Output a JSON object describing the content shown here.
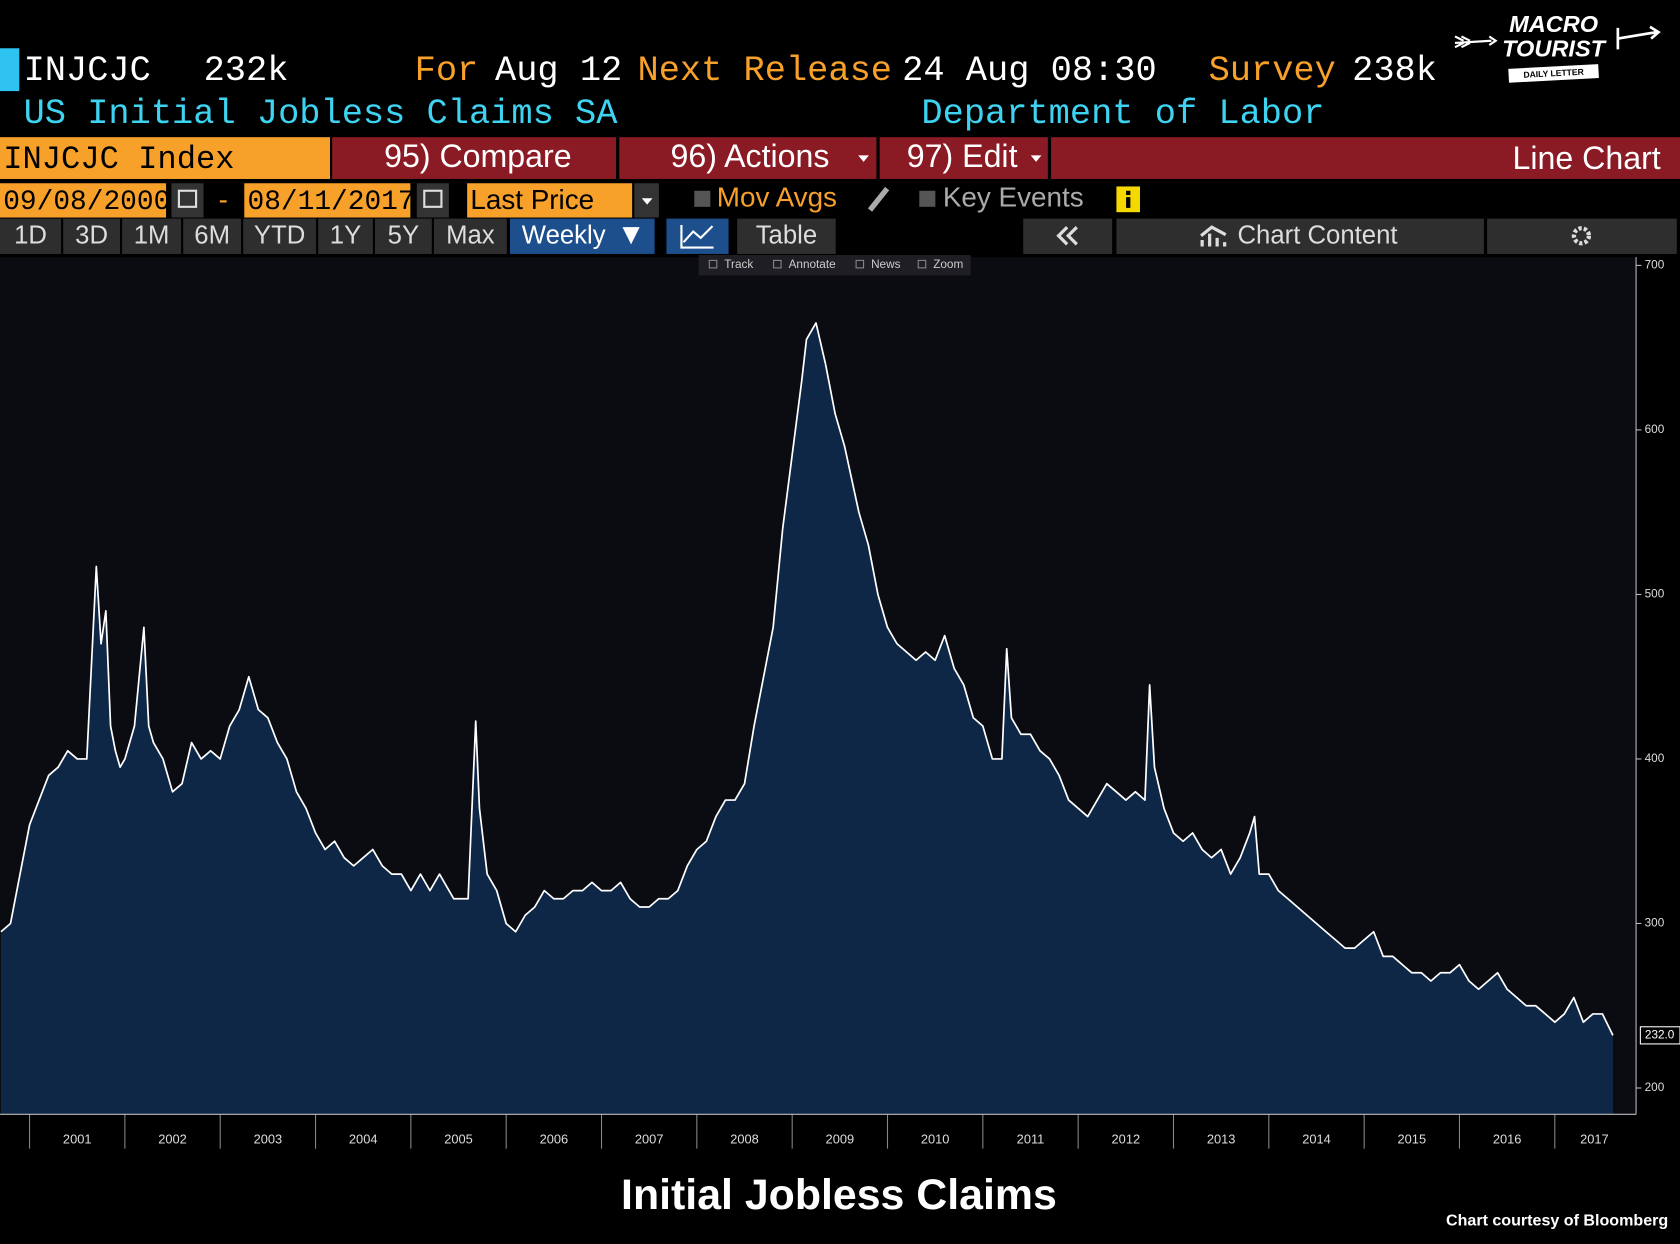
{
  "header": {
    "ticker": "INJCJC",
    "last": "232k",
    "for_label": "For",
    "for_date": "Aug 12",
    "next_label": "Next Release",
    "next_date": "24 Aug 08:30",
    "survey_label": "Survey",
    "survey_value": "238k",
    "name": "US Initial Jobless Claims SA",
    "source": "Department of Labor"
  },
  "logo": {
    "line1": "MACRO",
    "line2": "TOURIST",
    "tagline": "DAILY LETTER"
  },
  "menu": {
    "security": "INJCJC Index",
    "compare": "95) Compare",
    "actions": "96) Actions",
    "edit": "97) Edit",
    "chart_type": "Line Chart"
  },
  "controls": {
    "start": "09/08/2000",
    "dash": "-",
    "end": "08/11/2017",
    "field": "Last Price",
    "mov_avgs": "Mov Avgs",
    "key_events": "Key Events"
  },
  "tabs": {
    "ranges": [
      "1D",
      "3D",
      "1M",
      "6M",
      "YTD",
      "1Y",
      "5Y",
      "Max"
    ],
    "frequency": "Weekly",
    "table": "Table",
    "chart_content": "Chart Content"
  },
  "tools": [
    "Track",
    "Annotate",
    "News",
    "Zoom"
  ],
  "chart_data": {
    "type": "area",
    "title": "Initial Jobless Claims",
    "credit": "Chart courtesy of Bloomberg",
    "color": "#ffffff",
    "fill": "#0e2746",
    "x": [
      2000.7,
      2000.8,
      2000.9,
      2001.0,
      2001.1,
      2001.2,
      2001.3,
      2001.4,
      2001.5,
      2001.6,
      2001.7,
      2001.75,
      2001.8,
      2001.85,
      2001.9,
      2001.95,
      2002.0,
      2002.1,
      2002.2,
      2002.25,
      2002.3,
      2002.4,
      2002.5,
      2002.6,
      2002.7,
      2002.8,
      2002.9,
      2003.0,
      2003.1,
      2003.2,
      2003.3,
      2003.4,
      2003.5,
      2003.6,
      2003.7,
      2003.8,
      2003.9,
      2004.0,
      2004.1,
      2004.2,
      2004.3,
      2004.4,
      2004.5,
      2004.6,
      2004.7,
      2004.8,
      2004.9,
      2005.0,
      2005.1,
      2005.2,
      2005.3,
      2005.45,
      2005.6,
      2005.68,
      2005.72,
      2005.8,
      2005.9,
      2006.0,
      2006.1,
      2006.2,
      2006.3,
      2006.4,
      2006.5,
      2006.6,
      2006.7,
      2006.8,
      2006.9,
      2007.0,
      2007.1,
      2007.2,
      2007.3,
      2007.4,
      2007.5,
      2007.6,
      2007.7,
      2007.8,
      2007.9,
      2008.0,
      2008.1,
      2008.2,
      2008.3,
      2008.4,
      2008.5,
      2008.6,
      2008.7,
      2008.8,
      2008.9,
      2009.0,
      2009.1,
      2009.15,
      2009.25,
      2009.35,
      2009.45,
      2009.55,
      2009.7,
      2009.8,
      2009.9,
      2010.0,
      2010.1,
      2010.2,
      2010.3,
      2010.4,
      2010.5,
      2010.6,
      2010.7,
      2010.8,
      2010.9,
      2011.0,
      2011.1,
      2011.2,
      2011.25,
      2011.3,
      2011.4,
      2011.5,
      2011.6,
      2011.7,
      2011.8,
      2011.9,
      2012.0,
      2012.1,
      2012.2,
      2012.3,
      2012.4,
      2012.5,
      2012.6,
      2012.7,
      2012.75,
      2012.8,
      2012.9,
      2013.0,
      2013.1,
      2013.2,
      2013.3,
      2013.4,
      2013.5,
      2013.6,
      2013.7,
      2013.8,
      2013.85,
      2013.9,
      2014.0,
      2014.1,
      2014.2,
      2014.3,
      2014.4,
      2014.5,
      2014.6,
      2014.7,
      2014.8,
      2014.9,
      2015.0,
      2015.1,
      2015.2,
      2015.3,
      2015.4,
      2015.5,
      2015.6,
      2015.7,
      2015.8,
      2015.9,
      2016.0,
      2016.1,
      2016.2,
      2016.3,
      2016.4,
      2016.5,
      2016.6,
      2016.7,
      2016.8,
      2016.9,
      2017.0,
      2017.1,
      2017.2,
      2017.3,
      2017.4,
      2017.5,
      2017.61
    ],
    "values": [
      295,
      300,
      330,
      360,
      375,
      390,
      395,
      405,
      400,
      400,
      517,
      470,
      490,
      420,
      405,
      395,
      400,
      420,
      480,
      420,
      410,
      400,
      380,
      385,
      410,
      400,
      405,
      400,
      420,
      430,
      450,
      430,
      425,
      410,
      400,
      380,
      370,
      355,
      345,
      350,
      340,
      335,
      340,
      345,
      335,
      330,
      330,
      320,
      330,
      320,
      330,
      315,
      315,
      423,
      370,
      330,
      320,
      300,
      295,
      305,
      310,
      320,
      315,
      315,
      320,
      320,
      325,
      320,
      320,
      325,
      315,
      310,
      310,
      315,
      315,
      320,
      335,
      345,
      350,
      365,
      375,
      375,
      385,
      420,
      450,
      480,
      540,
      585,
      630,
      655,
      665,
      640,
      610,
      590,
      550,
      530,
      500,
      480,
      470,
      465,
      460,
      465,
      460,
      475,
      455,
      445,
      425,
      420,
      400,
      400,
      467,
      425,
      415,
      415,
      405,
      400,
      390,
      375,
      370,
      365,
      375,
      385,
      380,
      375,
      380,
      375,
      445,
      395,
      370,
      355,
      350,
      355,
      345,
      340,
      345,
      330,
      340,
      355,
      365,
      330,
      330,
      320,
      315,
      310,
      305,
      300,
      295,
      290,
      285,
      285,
      290,
      295,
      280,
      280,
      275,
      270,
      270,
      265,
      270,
      270,
      275,
      265,
      260,
      265,
      270,
      260,
      255,
      250,
      250,
      245,
      240,
      245,
      255,
      240,
      245,
      245,
      232
    ],
    "last_value_label": "232.0",
    "xlim": [
      2000.69,
      2017.83
    ],
    "xticks": [
      2001,
      2002,
      2003,
      2004,
      2005,
      2006,
      2007,
      2008,
      2009,
      2010,
      2011,
      2012,
      2013,
      2014,
      2015,
      2016,
      2017
    ],
    "ylim": [
      184,
      705
    ],
    "yticks": [
      200,
      300,
      400,
      500,
      600,
      700
    ],
    "axis_side": "right"
  }
}
